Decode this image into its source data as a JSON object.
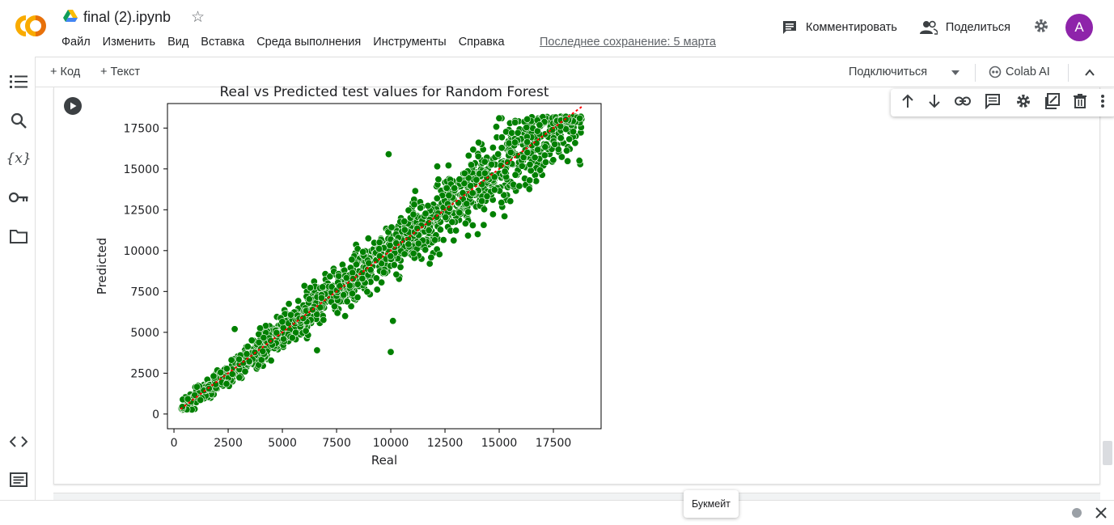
{
  "header": {
    "title": "final (2).ipynb",
    "menu": [
      "Файл",
      "Изменить",
      "Вид",
      "Вставка",
      "Среда выполнения",
      "Инструменты",
      "Справка"
    ],
    "last_save": "Последнее сохранение: 5 марта",
    "comment_label": "Комментировать",
    "share_label": "Поделиться",
    "avatar_letter": "A",
    "avatar_color": "#8e24aa"
  },
  "toolbar": {
    "add_code": "+ Код",
    "add_text": "+ Текст",
    "connect": "Подключиться",
    "colab_ai": "Colab AI"
  },
  "sidebar_icons": [
    "toc-icon",
    "search-icon",
    "variables-icon",
    "key-icon",
    "folder-icon",
    "code-snippets-icon",
    "terminal-icon"
  ],
  "cell_toolbar_icons": [
    "arrow-up-icon",
    "arrow-down-icon",
    "link-icon",
    "comment-icon",
    "gear-icon",
    "mirror-cell-icon",
    "trash-icon",
    "more-vert-icon"
  ],
  "tooltip": "Букмейт",
  "chart_data": {
    "type": "scatter",
    "title": "Real vs Predicted test values for Random Forest",
    "xlabel": "Real",
    "ylabel": "Predicted",
    "xticks": [
      0,
      2500,
      5000,
      7500,
      10000,
      12500,
      15000,
      17500
    ],
    "yticks": [
      0,
      2500,
      5000,
      7500,
      10000,
      12500,
      15000,
      17500
    ],
    "xlim": [
      -300,
      19700
    ],
    "ylim": [
      -900,
      19000
    ],
    "point_color": "#008000",
    "line_color": "#ff0000",
    "trend_line": {
      "x": [
        300,
        18800
      ],
      "y": [
        300,
        18800
      ]
    },
    "points_description_samples": [
      {
        "x": 2800,
        "y": 5200
      },
      {
        "x": 6600,
        "y": 3900
      },
      {
        "x": 10000,
        "y": 3800
      },
      {
        "x": 10100,
        "y": 5700
      },
      {
        "x": 9900,
        "y": 15900
      },
      {
        "x": 15000,
        "y": 18100
      },
      {
        "x": 16400,
        "y": 14300
      },
      {
        "x": 18700,
        "y": 15500
      }
    ]
  }
}
